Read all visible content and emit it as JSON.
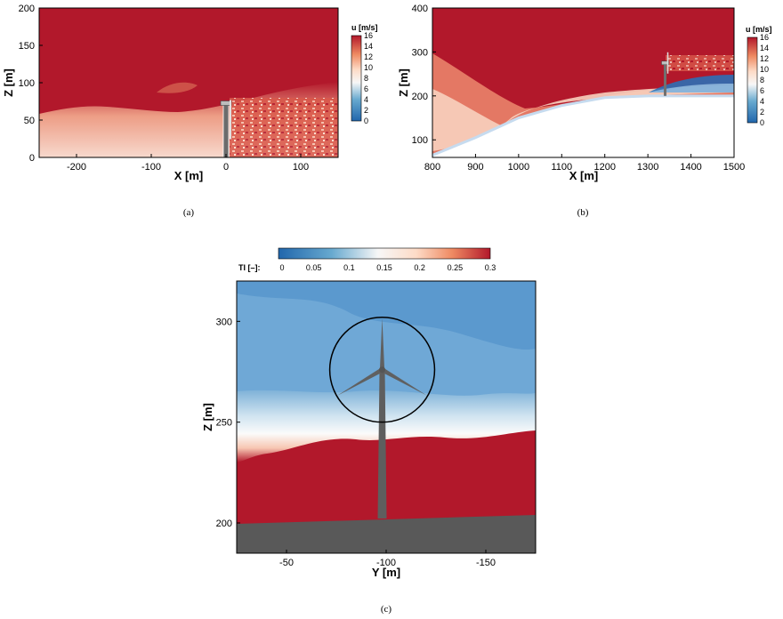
{
  "colors": {
    "high": "#b2182b",
    "low": "#2c6fb5",
    "tower": "#5e5e5e",
    "ground": "#595959"
  },
  "chart_data": [
    {
      "type": "heatmap",
      "caption": "(a)",
      "xlabel": "X [m]",
      "ylabel": "Z [m]",
      "xlim": [
        -250,
        150
      ],
      "ylim": [
        0,
        200
      ],
      "xticks": [
        -200,
        -100,
        0,
        100
      ],
      "yticks": [
        0,
        50,
        100,
        150,
        200
      ],
      "colorbar": {
        "label": "u [m/s]",
        "range": [
          0,
          16
        ],
        "ticks": [
          0,
          2,
          4,
          6,
          8,
          10,
          12,
          14,
          16
        ],
        "orientation": "vertical"
      },
      "turbine": {
        "x": 0,
        "hub_height": 72
      }
    },
    {
      "type": "heatmap",
      "caption": "(b)",
      "xlabel": "X [m]",
      "ylabel": "Z [m]",
      "xlim": [
        800,
        1500
      ],
      "ylim": [
        60,
        400
      ],
      "xticks": [
        800,
        900,
        1000,
        1100,
        1200,
        1300,
        1400,
        1500
      ],
      "yticks": [
        100,
        200,
        300,
        400
      ],
      "colorbar": {
        "label": "u [m/s]",
        "range": [
          0,
          16
        ],
        "ticks": [
          0,
          2,
          4,
          6,
          8,
          10,
          12,
          14,
          16
        ],
        "orientation": "vertical"
      },
      "terrain": [
        [
          800,
          65
        ],
        [
          900,
          105
        ],
        [
          1000,
          150
        ],
        [
          1100,
          178
        ],
        [
          1200,
          196
        ],
        [
          1300,
          200
        ],
        [
          1500,
          200
        ]
      ],
      "turbine": {
        "x": 1340,
        "hub_height": 275
      }
    },
    {
      "type": "heatmap",
      "caption": "(c)",
      "xlabel": "Y [m]",
      "ylabel": "Z [m]",
      "xlim": [
        -25,
        -175
      ],
      "ylim": [
        185,
        320
      ],
      "xticks": [
        -50,
        -100,
        -150
      ],
      "yticks": [
        200,
        250,
        300
      ],
      "colorbar": {
        "label": "TI [–]:",
        "range": [
          0,
          0.3
        ],
        "ticks": [
          "0",
          "0.05",
          "0.1",
          "0.15",
          "0.2",
          "0.25",
          "0.3"
        ],
        "orientation": "horizontal"
      },
      "turbine": {
        "y": -98,
        "hub_height": 276,
        "rotor_radius": 26
      }
    }
  ]
}
